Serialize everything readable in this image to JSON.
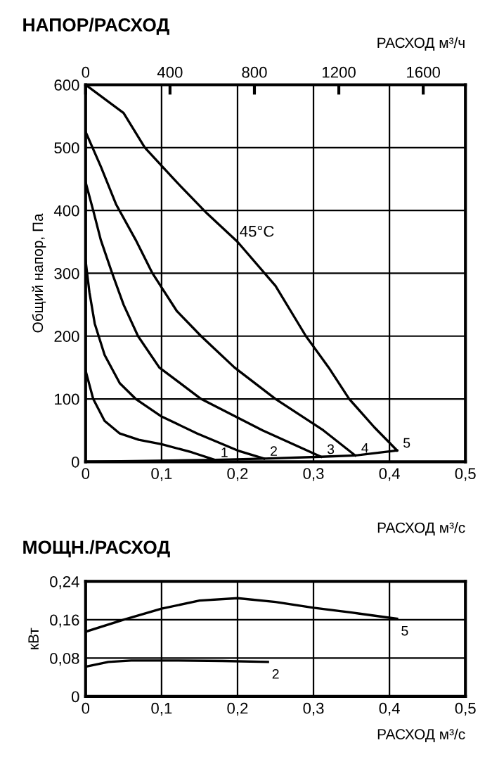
{
  "chart_data": [
    {
      "type": "line",
      "title": "НАПОР/РАСХОД",
      "xlabel": "РАСХОД м³/с",
      "ylabel": "Общий напор, Па",
      "x2label": "РАСХОД м³/ч",
      "xlim": [
        0,
        0.5
      ],
      "xticks": [
        {
          "value": 0,
          "label": "0"
        },
        {
          "value": 0.1,
          "label": "0,1"
        },
        {
          "value": 0.2,
          "label": "0,2"
        },
        {
          "value": 0.3,
          "label": "0,3"
        },
        {
          "value": 0.4,
          "label": "0,4"
        },
        {
          "value": 0.5,
          "label": "0,5"
        }
      ],
      "ylim": [
        0,
        600
      ],
      "yticks": [
        0,
        100,
        200,
        300,
        400,
        500,
        600
      ],
      "x2lim": [
        0,
        1800
      ],
      "x2ticks": [
        0,
        400,
        800,
        1200,
        1600
      ],
      "grid": true,
      "legend": false,
      "series": [
        {
          "name": "1",
          "color": "#000000",
          "x": [
            0,
            0.01,
            0.025,
            0.045,
            0.07,
            0.1,
            0.14,
            0.17
          ],
          "values": [
            145,
            100,
            65,
            45,
            35,
            28,
            15,
            3
          ]
        },
        {
          "name": "2",
          "color": "#000000",
          "x": [
            0,
            0.005,
            0.012,
            0.025,
            0.045,
            0.066,
            0.1,
            0.147,
            0.2,
            0.235
          ],
          "values": [
            320,
            270,
            220,
            170,
            125,
            100,
            72,
            45,
            18,
            5
          ]
        },
        {
          "name": "3",
          "color": "#000000",
          "x": [
            0,
            0.01,
            0.02,
            0.035,
            0.05,
            0.069,
            0.097,
            0.152,
            0.233,
            0.31
          ],
          "values": [
            445,
            400,
            353,
            300,
            250,
            200,
            150,
            100,
            50,
            8
          ]
        },
        {
          "name": "4",
          "color": "#000000",
          "x": [
            0,
            0.02,
            0.04,
            0.066,
            0.088,
            0.12,
            0.152,
            0.196,
            0.25,
            0.313,
            0.355
          ],
          "values": [
            525,
            470,
            410,
            353,
            300,
            240,
            200,
            150,
            100,
            50,
            10
          ]
        },
        {
          "name": "5",
          "color": "#000000",
          "x": [
            0,
            0.05,
            0.078,
            0.12,
            0.16,
            0.2,
            0.25,
            0.29,
            0.32,
            0.347,
            0.38,
            0.41
          ],
          "values": [
            600,
            555,
            500,
            445,
            395,
            350,
            280,
            200,
            150,
            100,
            55,
            18
          ]
        },
        {
          "color": "#000000",
          "x": [
            0,
            0.17,
            0.235,
            0.31,
            0.355,
            0.41
          ],
          "values": [
            0,
            3,
            5,
            8,
            10,
            18
          ]
        }
      ],
      "annotations": [
        {
          "text": "45°C",
          "x": 0.2,
          "y": 350
        }
      ]
    },
    {
      "type": "line",
      "title": "МОЩН./РАСХОД",
      "xlabel": "РАСХОД м³/с",
      "ylabel": "кВт",
      "xlim": [
        0,
        0.5
      ],
      "xticks": [
        {
          "value": 0,
          "label": "0"
        },
        {
          "value": 0.1,
          "label": "0,1"
        },
        {
          "value": 0.2,
          "label": "0,2"
        },
        {
          "value": 0.3,
          "label": "0,3"
        },
        {
          "value": 0.4,
          "label": "0,4"
        },
        {
          "value": 0.5,
          "label": "0,5"
        }
      ],
      "ylim": [
        0,
        0.24
      ],
      "yticks": [
        {
          "value": 0,
          "label": "0"
        },
        {
          "value": 0.08,
          "label": "0,08"
        },
        {
          "value": 0.16,
          "label": "0,16"
        },
        {
          "value": 0.24,
          "label": "0,24"
        }
      ],
      "grid": true,
      "legend": false,
      "series": [
        {
          "name": "5",
          "color": "#000000",
          "x": [
            0,
            0.05,
            0.1,
            0.15,
            0.2,
            0.25,
            0.3,
            0.35,
            0.41
          ],
          "values": [
            0.135,
            0.16,
            0.183,
            0.2,
            0.205,
            0.197,
            0.185,
            0.175,
            0.162
          ]
        },
        {
          "name": "2",
          "color": "#000000",
          "x": [
            0,
            0.03,
            0.06,
            0.12,
            0.18,
            0.24
          ],
          "values": [
            0.062,
            0.072,
            0.075,
            0.075,
            0.074,
            0.072
          ]
        }
      ]
    }
  ]
}
